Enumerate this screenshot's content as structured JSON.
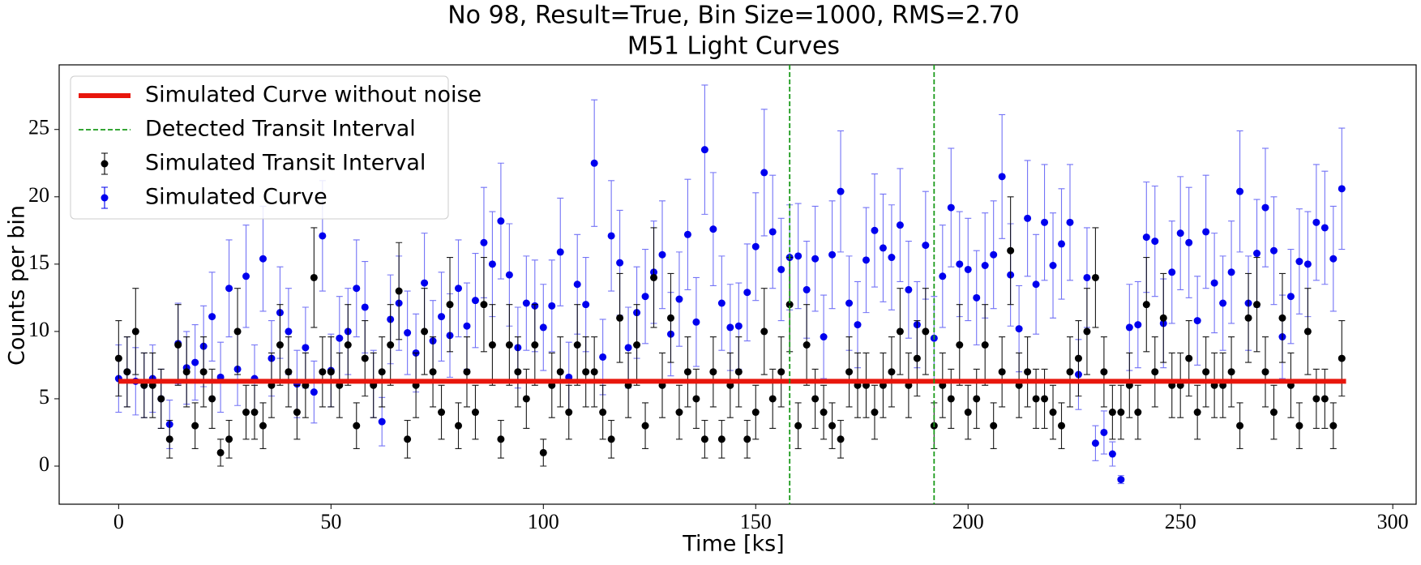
{
  "chart_data": {
    "type": "errorbar",
    "title": "No 98, Result=True, Bin Size=1000, RMS=2.70",
    "subtitle": "M51 Light Curves",
    "x_label": "Time [ks]",
    "y_label": "Counts per bin",
    "xlim": [
      -14,
      305.5
    ],
    "ylim": [
      -2.83,
      29.8
    ],
    "xticks": [
      0,
      50,
      100,
      150,
      200,
      250,
      300
    ],
    "yticks": [
      0,
      5,
      10,
      15,
      20,
      25
    ],
    "legend": "upper left",
    "vlines": {
      "name": "Detected Transit Interval",
      "color": "#1a9a1a",
      "x": [
        158,
        192
      ]
    },
    "x": [
      0,
      2,
      4,
      6,
      8,
      10,
      12,
      14,
      16,
      18,
      20,
      22,
      24,
      26,
      28,
      30,
      32,
      34,
      36,
      38,
      40,
      42,
      44,
      46,
      48,
      50,
      52,
      54,
      56,
      58,
      60,
      62,
      64,
      66,
      68,
      70,
      72,
      74,
      76,
      78,
      80,
      82,
      84,
      86,
      88,
      90,
      92,
      94,
      96,
      98,
      100,
      102,
      104,
      106,
      108,
      110,
      112,
      114,
      116,
      118,
      120,
      122,
      124,
      126,
      128,
      130,
      132,
      134,
      136,
      138,
      140,
      142,
      144,
      146,
      148,
      150,
      152,
      154,
      156,
      158,
      160,
      162,
      164,
      166,
      168,
      170,
      172,
      174,
      176,
      178,
      180,
      182,
      184,
      186,
      188,
      190,
      192,
      194,
      196,
      198,
      200,
      202,
      204,
      206,
      208,
      210,
      212,
      214,
      216,
      218,
      220,
      222,
      224,
      226,
      228,
      230,
      232,
      234,
      236,
      238,
      240,
      242,
      244,
      246,
      248,
      250,
      252,
      254,
      256,
      258,
      260,
      262,
      264,
      266,
      268,
      270,
      272,
      274,
      276,
      278,
      280,
      282,
      284,
      286,
      288
    ],
    "series": [
      {
        "name": "Simulated Curve without noise",
        "kind": "line",
        "color": "#e8160c",
        "x": [
          0,
          289
        ],
        "values": [
          6.3,
          6.3
        ]
      },
      {
        "name": "Simulated Transit Interval",
        "kind": "errorbar",
        "color": "#000000",
        "values": [
          8,
          7,
          10,
          6,
          6,
          5,
          2,
          9,
          7,
          3,
          7,
          5,
          1,
          2,
          10,
          4,
          4,
          3,
          6,
          9,
          7,
          4,
          6,
          14,
          7,
          7,
          6,
          9,
          3,
          8,
          6,
          7,
          9,
          13,
          2,
          6,
          10,
          7,
          4,
          12,
          3,
          7,
          4,
          12,
          9,
          2,
          9,
          7,
          5,
          9,
          1,
          6,
          7,
          4,
          9,
          7,
          7,
          4,
          2,
          11,
          6,
          9,
          3,
          14,
          6,
          11,
          4,
          7,
          5,
          2,
          7,
          2,
          6,
          7,
          2,
          4,
          10,
          5,
          7,
          12,
          3,
          9,
          5,
          4,
          3,
          2,
          7,
          6,
          6,
          4,
          6,
          7,
          10,
          6,
          8,
          10,
          3,
          6,
          5,
          9,
          4,
          5,
          9,
          3,
          7,
          16,
          6,
          7,
          5,
          5,
          4,
          3,
          7,
          8,
          10,
          14,
          7,
          4,
          4,
          6,
          4,
          12,
          7,
          11,
          6,
          6,
          8,
          4,
          7,
          6,
          6,
          7,
          3,
          11,
          12,
          7,
          4,
          11,
          6,
          3,
          10,
          5,
          5,
          3,
          8
        ],
        "errors": [
          2.8,
          2.6,
          3.2,
          2.4,
          2.4,
          2.2,
          1.4,
          3,
          2.6,
          1.7,
          2.6,
          2.2,
          1,
          1.4,
          3.2,
          2,
          2,
          1.7,
          2.4,
          3,
          2.6,
          2,
          2.4,
          3.7,
          2.6,
          2.6,
          2.4,
          3,
          1.7,
          2.8,
          2.4,
          2.6,
          3,
          3.6,
          1.4,
          2.4,
          3.2,
          2.6,
          2,
          3.5,
          1.7,
          2.6,
          2,
          3.5,
          3,
          1.4,
          3,
          2.6,
          2.2,
          3,
          1,
          2.4,
          2.6,
          2,
          3,
          2.6,
          2.6,
          2,
          1.4,
          3.3,
          2.4,
          3,
          1.7,
          3.7,
          2.4,
          3.3,
          2,
          2.6,
          2.2,
          1.4,
          2.6,
          1.4,
          2.4,
          2.6,
          1.4,
          2,
          3.2,
          2.2,
          2.6,
          3.5,
          1.7,
          3,
          2.2,
          2,
          1.7,
          1.4,
          2.6,
          2.4,
          2.4,
          2,
          2.4,
          2.6,
          3.2,
          2.4,
          2.8,
          3.2,
          1.7,
          2.4,
          2.2,
          3,
          2,
          2.2,
          3,
          1.7,
          2.6,
          4,
          2.4,
          2.6,
          2.2,
          2.2,
          2,
          1.7,
          2.6,
          2.8,
          3.2,
          3.7,
          2.6,
          2,
          2,
          2.4,
          2,
          3.5,
          2.6,
          3.3,
          2.4,
          2.4,
          2.8,
          2,
          2.6,
          2.4,
          2.4,
          2.6,
          1.7,
          3.3,
          3.5,
          2.6,
          2,
          3.3,
          2.4,
          1.7,
          3.2,
          2.2,
          2.2,
          1.7,
          2.8
        ]
      },
      {
        "name": "Simulated Curve",
        "kind": "errorbar",
        "color": "#0000ee",
        "values": [
          6.5,
          7.0,
          6.3,
          6.0,
          6.5,
          5.0,
          3.1,
          9.1,
          7.3,
          7.7,
          8.9,
          11.1,
          6.6,
          13.2,
          7.2,
          14.1,
          6.5,
          15.4,
          8.0,
          11.4,
          10.0,
          6.1,
          8.8,
          5.5,
          17.1,
          7.1,
          9.5,
          10.0,
          13.2,
          11.8,
          6.1,
          3.3,
          10.9,
          12.1,
          9.9,
          8.4,
          13.6,
          9.3,
          11.1,
          9.7,
          13.2,
          10.4,
          12.3,
          16.6,
          15.0,
          18.2,
          14.2,
          8.8,
          12.1,
          11.9,
          10.3,
          11.9,
          15.9,
          6.6,
          13.5,
          12.0,
          22.5,
          8.1,
          17.1,
          15.1,
          8.8,
          11.4,
          12.6,
          14.4,
          15.7,
          9.8,
          12.4,
          17.2,
          10.7,
          23.5,
          17.6,
          12.1,
          10.3,
          10.4,
          12.9,
          16.3,
          21.8,
          17.4,
          14.6,
          15.5,
          15.6,
          13.1,
          15.4,
          9.6,
          15.7,
          20.4,
          12.1,
          10.5,
          15.3,
          17.5,
          16.2,
          15.5,
          17.9,
          13.1,
          10.5,
          16.4,
          9.5,
          14.1,
          19.2,
          15.0,
          14.6,
          12.5,
          14.9,
          15.7,
          21.5,
          14.2,
          10.2,
          18.4,
          13.5,
          18.1,
          14.9,
          16.5,
          18.1,
          6.8,
          14.0,
          1.7,
          2.5,
          0.9,
          -1.0,
          10.3,
          10.5,
          17.0,
          16.7,
          10.6,
          14.4,
          17.3,
          16.6,
          10.8,
          17.4,
          13.6,
          12.1,
          14.4,
          20.4,
          12.1,
          15.8,
          19.2,
          16.0,
          9.6,
          12.6,
          15.2,
          15.0,
          18.1,
          17.7,
          15.4,
          20.6
        ],
        "errors": [
          2.5,
          2.6,
          2.5,
          2.4,
          2.5,
          2.2,
          1.8,
          3.0,
          2.7,
          2.8,
          3.0,
          3.3,
          2.6,
          3.6,
          2.7,
          3.8,
          2.5,
          3.9,
          2.8,
          3.4,
          3.2,
          2.5,
          3.0,
          2.3,
          4.1,
          2.7,
          3.1,
          3.2,
          3.6,
          3.4,
          2.5,
          1.8,
          3.3,
          3.5,
          3.1,
          2.9,
          3.7,
          3.0,
          3.3,
          3.1,
          3.6,
          3.2,
          3.5,
          4.1,
          3.9,
          4.3,
          3.8,
          3.0,
          3.5,
          3.4,
          3.2,
          3.4,
          4.0,
          2.6,
          3.7,
          3.5,
          4.7,
          2.8,
          4.1,
          3.9,
          3.0,
          3.4,
          3.5,
          3.8,
          4.0,
          3.1,
          3.5,
          4.1,
          3.3,
          4.8,
          4.2,
          3.5,
          3.2,
          3.2,
          3.6,
          4.0,
          4.7,
          4.2,
          3.8,
          3.9,
          3.9,
          3.6,
          3.9,
          3.1,
          4.0,
          4.5,
          3.5,
          3.2,
          3.9,
          4.2,
          4.0,
          3.9,
          4.2,
          3.6,
          3.2,
          4.0,
          3.1,
          3.8,
          4.4,
          3.9,
          3.8,
          3.5,
          3.9,
          4.0,
          4.6,
          3.8,
          3.2,
          4.3,
          3.7,
          4.3,
          3.9,
          4.1,
          4.3,
          2.6,
          3.7,
          1.3,
          1.6,
          0.9,
          0.3,
          3.2,
          3.2,
          4.1,
          4.1,
          3.3,
          3.8,
          4.2,
          4.1,
          3.3,
          4.2,
          3.7,
          3.5,
          3.8,
          4.5,
          3.5,
          4.0,
          4.4,
          4.0,
          3.1,
          3.5,
          3.9,
          3.9,
          4.3,
          4.2,
          3.9,
          4.5
        ]
      }
    ]
  }
}
